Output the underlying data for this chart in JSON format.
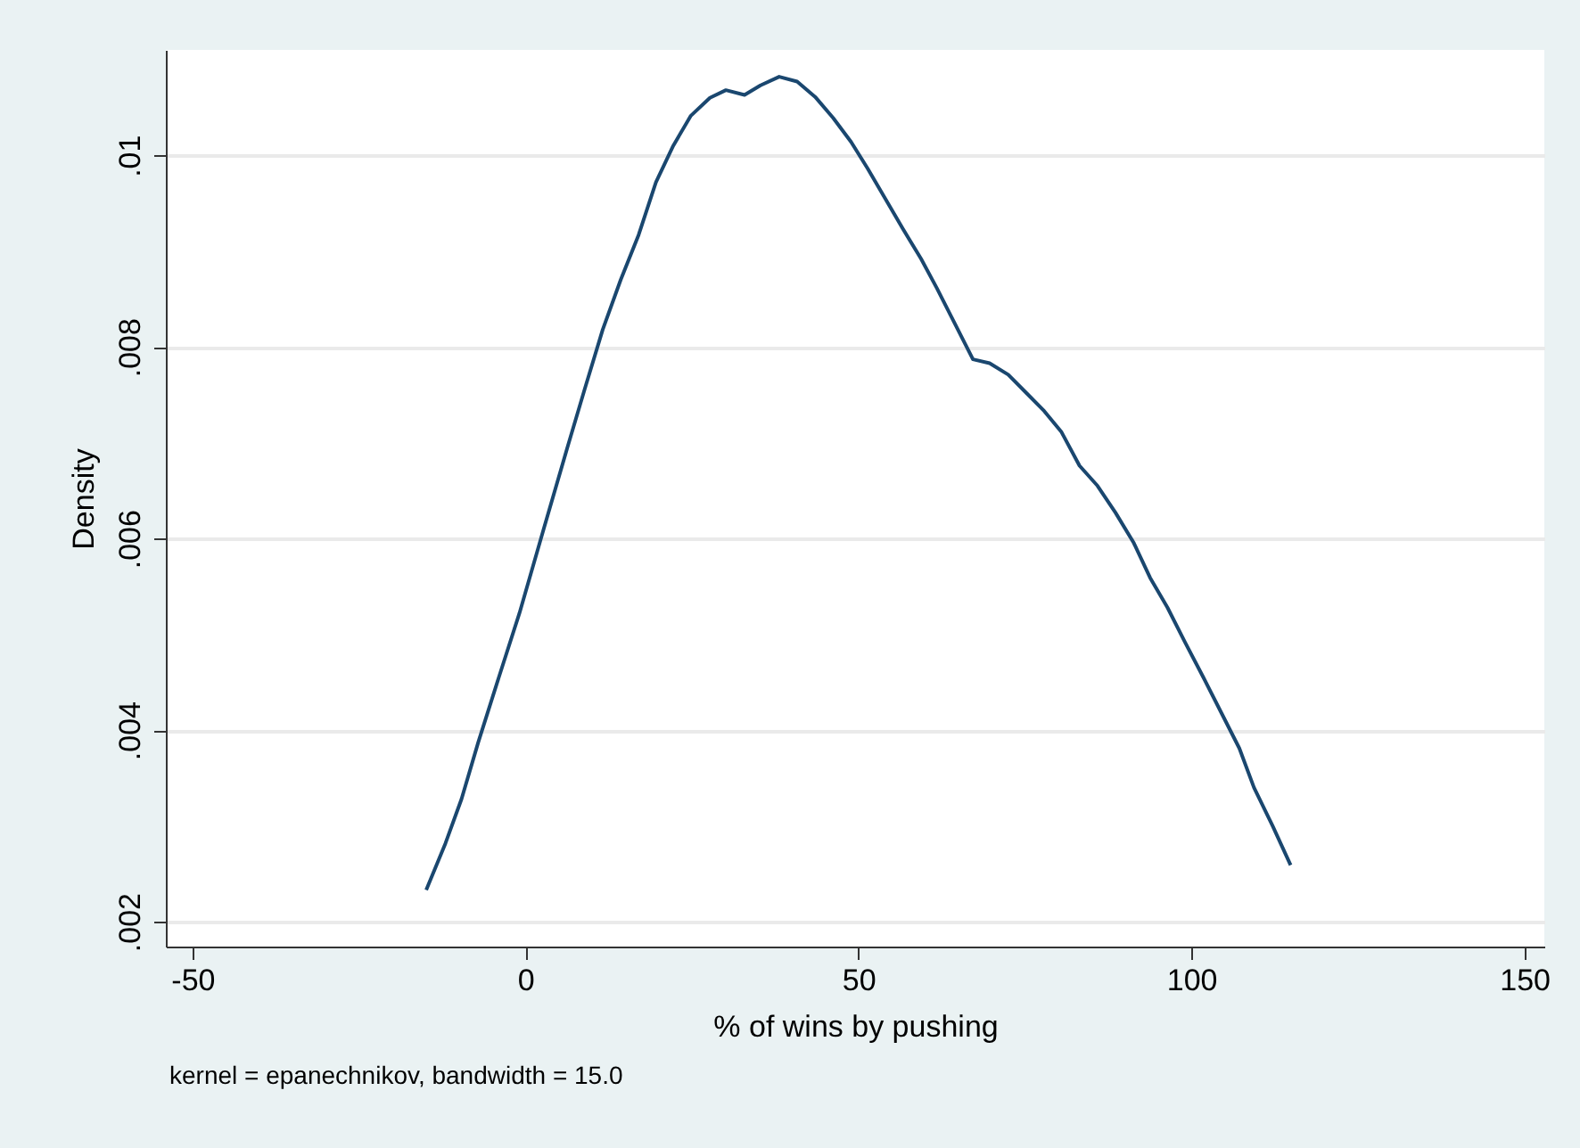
{
  "chart_data": {
    "type": "line",
    "xlabel": "% of wins by pushing",
    "ylabel": "Density",
    "annotations": [
      "kernel = epanechnikov, bandwidth = 15.0"
    ],
    "x": [
      -14.9,
      -12.0,
      -9.6,
      -7.1,
      -4.0,
      -0.9,
      2.7,
      6.3,
      8.9,
      11.6,
      14.3,
      17.0,
      19.6,
      22.2,
      24.8,
      27.7,
      30.1,
      32.9,
      35.3,
      38.1,
      40.8,
      43.5,
      46.2,
      48.9,
      51.4,
      54.1,
      56.7,
      59.4,
      61.8,
      64.5,
      67.2,
      69.7,
      72.5,
      75.2,
      77.9,
      80.5,
      83.2,
      85.9,
      88.6,
      91.3,
      93.8,
      96.4,
      99.1,
      101.8,
      104.5,
      107.2,
      109.4,
      112.2,
      114.9
    ],
    "series": [
      {
        "color": "#1a476f",
        "values": [
          0.00233,
          0.00282,
          0.00328,
          0.00387,
          0.00455,
          0.00522,
          0.00609,
          0.00695,
          0.00756,
          0.00818,
          0.0087,
          0.00917,
          0.00972,
          0.0101,
          0.01041,
          0.0106,
          0.01068,
          0.01063,
          0.01073,
          0.01082,
          0.01077,
          0.01061,
          0.01039,
          0.01014,
          0.00986,
          0.00954,
          0.00923,
          0.00892,
          0.00861,
          0.00824,
          0.00787,
          0.00783,
          0.00771,
          0.00752,
          0.00733,
          0.00711,
          0.00676,
          0.00655,
          0.00627,
          0.00596,
          0.00559,
          0.00528,
          0.00491,
          0.00455,
          0.00418,
          0.00381,
          0.0034,
          0.003,
          0.00259
        ]
      }
    ],
    "xlim": [
      -54,
      153
    ],
    "xticks": [
      -50,
      0,
      50,
      100,
      150
    ],
    "ylim": [
      0.00174,
      0.0111
    ],
    "yticks": [
      {
        "value": 0.002,
        "label": ".002"
      },
      {
        "value": 0.004,
        "label": ".004"
      },
      {
        "value": 0.006,
        "label": ".006"
      },
      {
        "value": 0.008,
        "label": ".008"
      },
      {
        "value": 0.01,
        "label": ".01"
      }
    ],
    "grid": "y",
    "marker": "none",
    "line_style": "solid"
  }
}
